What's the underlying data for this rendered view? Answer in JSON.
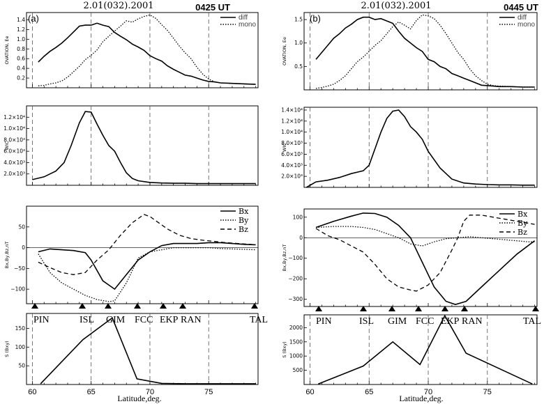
{
  "date_left": "2.01(032).2001",
  "date_right": "2.01(032).2001",
  "time_left": "0425 UT",
  "time_right": "0445 UT",
  "panel_left_label": "(a)",
  "panel_right_label": "(b)",
  "x_axis_label": "Latitude,deg.",
  "station_names": [
    "PIN",
    "ISL",
    "GIM",
    "FCC",
    "EKP",
    "RAN",
    "TAL"
  ],
  "chart_data": [
    {
      "id": "a-ovation",
      "type": "line",
      "ylabel": "OVATION, Ee",
      "xlim": [
        59.5,
        79.2
      ],
      "ylim": [
        0,
        1.55
      ],
      "yticks": [
        0.2,
        0.4,
        0.6,
        0.8,
        1.0,
        1.2,
        1.4
      ],
      "ytick_labels": [
        "0.2",
        "0.4",
        "0.6",
        "0.8",
        "1.0",
        "1.2",
        "1.4"
      ],
      "vlines": [
        60,
        65,
        70,
        75
      ],
      "legend": "top-right",
      "series": [
        {
          "name": "diff",
          "style": "solid",
          "x": [
            60.5,
            61,
            61.5,
            62,
            62.5,
            63,
            63.5,
            64,
            64.5,
            65,
            65.5,
            66,
            66.5,
            67,
            67.5,
            68,
            68.5,
            69,
            69.5,
            70,
            70.5,
            71,
            71.5,
            72,
            72.5,
            73,
            73.5,
            74,
            74.5,
            75,
            75.5,
            76,
            77,
            78,
            79
          ],
          "y": [
            0.53,
            0.65,
            0.75,
            0.83,
            0.92,
            1.03,
            1.15,
            1.27,
            1.29,
            1.29,
            1.33,
            1.29,
            1.26,
            1.14,
            1.06,
            0.99,
            0.9,
            0.84,
            0.77,
            0.66,
            0.6,
            0.55,
            0.45,
            0.38,
            0.32,
            0.26,
            0.24,
            0.2,
            0.16,
            0.13,
            0.12,
            0.1,
            0.09,
            0.08,
            0.07
          ]
        },
        {
          "name": "mono",
          "style": "dotted",
          "x": [
            60.5,
            61,
            61.5,
            62,
            62.5,
            63,
            63.5,
            64,
            64.5,
            65,
            65.5,
            66,
            66.5,
            67,
            67.5,
            68,
            68.5,
            69,
            69.5,
            70,
            70.5,
            71,
            71.5,
            72,
            72.5,
            73,
            73.5,
            74,
            74.5,
            75,
            75.5,
            76,
            77,
            78,
            79
          ],
          "y": [
            0.04,
            0.05,
            0.08,
            0.1,
            0.14,
            0.22,
            0.33,
            0.44,
            0.58,
            0.67,
            0.78,
            0.95,
            1.06,
            1.17,
            1.27,
            1.38,
            1.35,
            1.42,
            1.47,
            1.5,
            1.43,
            1.3,
            1.18,
            1.02,
            0.86,
            0.72,
            0.6,
            0.42,
            0.28,
            0.18,
            0.12,
            0.1,
            0.09,
            0.08,
            0.07
          ]
        }
      ]
    },
    {
      "id": "a-wic",
      "type": "line",
      "ylabel": "WIC",
      "xlim": [
        59.5,
        79.2
      ],
      "ylim": [
        0,
        14000
      ],
      "yticks": [
        2000,
        4000,
        6000,
        8000,
        10000,
        12000
      ],
      "ytick_labels": [
        "2.0×10³",
        "4.0×10³",
        "6.0×10³",
        "8.0×10³",
        "1.0×10⁴",
        "1.2×10⁴"
      ],
      "vlines": [
        60,
        65,
        70,
        75
      ],
      "series": [
        {
          "name": "",
          "style": "solid",
          "x": [
            60,
            61,
            62,
            62.7,
            63.3,
            64,
            64.5,
            65,
            65.5,
            66,
            66.5,
            67,
            67.5,
            68,
            68.5,
            69,
            70,
            71,
            72,
            73,
            74,
            75,
            76,
            77,
            78,
            79
          ],
          "y": [
            1000,
            1500,
            2500,
            4000,
            7000,
            11000,
            13000,
            12900,
            10800,
            8800,
            7000,
            6000,
            4000,
            2200,
            1200,
            800,
            500,
            400,
            350,
            350,
            300,
            300,
            300,
            300,
            300,
            300
          ]
        }
      ]
    },
    {
      "id": "a-b",
      "type": "line",
      "ylabel": "Bx,By,Bz,nT",
      "xlim": [
        59.5,
        79.2
      ],
      "ylim": [
        -135,
        100
      ],
      "yticks": [
        -100,
        -50,
        0,
        50
      ],
      "ytick_labels": [
        "−100",
        "−50",
        "0",
        "50"
      ],
      "hline": 0,
      "legend": "top-right",
      "series": [
        {
          "name": "Bx",
          "style": "solid",
          "x": [
            60.5,
            61.5,
            62.5,
            63.5,
            64.5,
            65,
            66,
            67,
            68,
            69,
            70,
            71,
            72,
            73,
            74,
            75,
            76,
            77,
            78,
            79
          ],
          "y": [
            -10,
            -3,
            -5,
            -7,
            -12,
            -30,
            -80,
            -100,
            -65,
            -30,
            -10,
            5,
            10,
            10,
            10,
            12,
            12,
            10,
            8,
            7
          ]
        },
        {
          "name": "By",
          "style": "dotted",
          "x": [
            60.5,
            61.5,
            62.5,
            63.5,
            64.5,
            65.5,
            66.5,
            67,
            68,
            69,
            70,
            71,
            72,
            73,
            74,
            75,
            76,
            77,
            78,
            79
          ],
          "y": [
            -15,
            -60,
            -85,
            -100,
            -115,
            -125,
            -130,
            -128,
            -85,
            -25,
            -10,
            -5,
            0,
            0,
            0,
            0,
            -2,
            -3,
            -4,
            -5
          ]
        },
        {
          "name": "Bz",
          "style": "dashed",
          "x": [
            60.5,
            61.5,
            62.5,
            63.5,
            64.5,
            65.5,
            66.5,
            67.5,
            68.5,
            69.5,
            70,
            70.5,
            71.5,
            72.5,
            73.5,
            74.5,
            75.5,
            76.5,
            77.5,
            78.5,
            79
          ],
          "y": [
            -35,
            -48,
            -60,
            -65,
            -60,
            -30,
            -5,
            30,
            60,
            80,
            75,
            65,
            45,
            30,
            22,
            18,
            15,
            12,
            10,
            8,
            7
          ]
        }
      ]
    },
    {
      "id": "a-s",
      "type": "line",
      "ylabel": "S (Bxy)",
      "xlim": [
        59.5,
        79.2
      ],
      "ylim": [
        0,
        190
      ],
      "yticks": [
        50,
        100,
        150
      ],
      "ytick_labels": [
        "50",
        "100",
        "150"
      ],
      "xticks": [
        60,
        65,
        70,
        75
      ],
      "xtick_labels": [
        "60",
        "65",
        "70",
        "75"
      ],
      "vlines": [
        60,
        65,
        70,
        75
      ],
      "series": [
        {
          "name": "",
          "style": "solid",
          "x": [
            60.7,
            64.3,
            66.8,
            68.9,
            71,
            73,
            79
          ],
          "y": [
            2,
            120,
            178,
            15,
            3,
            2,
            2
          ]
        }
      ]
    },
    {
      "id": "b-ovation",
      "type": "line",
      "ylabel": "OVATION, Ee",
      "xlim": [
        59.5,
        79.2
      ],
      "ylim": [
        0,
        1.65
      ],
      "yticks": [
        0.5,
        1.0,
        1.5
      ],
      "ytick_labels": [
        "0.5",
        "1.0",
        "1.5"
      ],
      "vlines": [
        60,
        65,
        70,
        75
      ],
      "legend": "top-right",
      "series": [
        {
          "name": "diff",
          "style": "solid",
          "x": [
            60.5,
            61,
            61.5,
            62,
            62.5,
            63,
            63.5,
            64,
            64.5,
            65,
            65.5,
            66,
            66.5,
            67,
            67.5,
            68,
            68.5,
            69,
            69.5,
            70,
            70.5,
            71,
            71.5,
            72,
            72.5,
            73,
            73.5,
            74,
            74.5,
            75,
            75.5,
            76,
            77,
            78,
            79
          ],
          "y": [
            0.65,
            0.8,
            0.95,
            1.1,
            1.2,
            1.32,
            1.4,
            1.5,
            1.55,
            1.55,
            1.5,
            1.52,
            1.47,
            1.42,
            1.25,
            1.1,
            1.0,
            0.9,
            0.82,
            0.65,
            0.6,
            0.5,
            0.45,
            0.35,
            0.3,
            0.25,
            0.2,
            0.15,
            0.1,
            0.09,
            0.08,
            0.07,
            0.07,
            0.06,
            0.06
          ]
        },
        {
          "name": "mono",
          "style": "dotted",
          "x": [
            60.5,
            61,
            61.5,
            62,
            62.5,
            63,
            63.5,
            64,
            64.5,
            65,
            65.5,
            66,
            66.5,
            67,
            67.5,
            68,
            68.5,
            69,
            69.5,
            70,
            70.5,
            71,
            71.5,
            72,
            72.5,
            73,
            73.5,
            74,
            74.5,
            75,
            75.5,
            76,
            77,
            78,
            79
          ],
          "y": [
            0.03,
            0.05,
            0.08,
            0.12,
            0.2,
            0.3,
            0.45,
            0.6,
            0.7,
            0.82,
            0.95,
            1.05,
            1.2,
            1.35,
            1.45,
            1.38,
            1.3,
            1.48,
            1.6,
            1.58,
            1.52,
            1.38,
            1.2,
            1.0,
            0.8,
            0.65,
            0.45,
            0.3,
            0.2,
            0.12,
            0.09,
            0.08,
            0.07,
            0.06,
            0.06
          ]
        }
      ]
    },
    {
      "id": "b-wic",
      "type": "line",
      "ylabel": "WIC",
      "xlim": [
        59.5,
        79.2
      ],
      "ylim": [
        0,
        14500
      ],
      "yticks": [
        2000,
        4000,
        6000,
        8000,
        10000,
        12000,
        14000
      ],
      "ytick_labels": [
        "2.0×10³",
        "4.0×10³",
        "6.0×10³",
        "8.0×10³",
        "1.0×10⁴",
        "1.2×10⁴",
        "1.4×10⁴"
      ],
      "vlines": [
        60,
        65,
        70,
        75
      ],
      "series": [
        {
          "name": "",
          "style": "solid",
          "x": [
            59.7,
            60.5,
            61.5,
            62.5,
            63.5,
            64.5,
            65,
            65.5,
            66,
            66.5,
            67,
            67.5,
            68,
            68.5,
            69,
            69.5,
            70,
            71,
            72,
            73,
            74,
            75,
            76,
            77,
            78,
            79
          ],
          "y": [
            0,
            1000,
            1300,
            1800,
            2500,
            3000,
            4000,
            7000,
            10000,
            12500,
            13800,
            14000,
            12800,
            11000,
            10000,
            8700,
            6500,
            3500,
            1500,
            800,
            600,
            500,
            450,
            450,
            400,
            400
          ]
        }
      ]
    },
    {
      "id": "b-b",
      "type": "line",
      "ylabel": "Bx,By,Bz,nT",
      "xlim": [
        59.5,
        79.2
      ],
      "ylim": [
        -335,
        140
      ],
      "yticks": [
        -300,
        -200,
        -100,
        0,
        100
      ],
      "ytick_labels": [
        "−300",
        "−200",
        "−100",
        "0",
        "100"
      ],
      "hline": 0,
      "legend": "top-right",
      "series": [
        {
          "name": "Bx",
          "style": "solid",
          "x": [
            60.5,
            62,
            63.5,
            64.5,
            65.5,
            66.5,
            67.5,
            68.5,
            69.5,
            70.5,
            71.5,
            72.3,
            73.2,
            74.5,
            76,
            77.5,
            79
          ],
          "y": [
            50,
            80,
            105,
            120,
            118,
            100,
            60,
            0,
            -120,
            -240,
            -310,
            -325,
            -310,
            -240,
            -160,
            -80,
            -15
          ]
        },
        {
          "name": "By",
          "style": "dotted",
          "x": [
            60.5,
            62,
            63.5,
            64.5,
            65.5,
            66.5,
            67.5,
            68.5,
            69.5,
            70.5,
            71.5,
            72.5,
            73.5,
            74.5,
            75.5,
            76.5,
            77.5,
            78.5,
            79
          ],
          "y": [
            50,
            55,
            55,
            50,
            40,
            20,
            0,
            -30,
            -40,
            -20,
            -5,
            0,
            5,
            0,
            -5,
            -10,
            -15,
            -20,
            -20
          ]
        },
        {
          "name": "Bz",
          "style": "dashed",
          "x": [
            60.5,
            61.5,
            62.5,
            63.5,
            64.5,
            65.5,
            66.5,
            67.5,
            68.5,
            69,
            70,
            71,
            72,
            72.5,
            73,
            73.5,
            74.5,
            75.5,
            76.5,
            77.5,
            78.5,
            79
          ],
          "y": [
            45,
            10,
            -10,
            -40,
            -70,
            -130,
            -200,
            -240,
            -255,
            -260,
            -230,
            -170,
            -60,
            0,
            80,
            110,
            110,
            100,
            90,
            80,
            70,
            65
          ]
        }
      ]
    },
    {
      "id": "b-s",
      "type": "line",
      "ylabel": "S (Bxy)",
      "xlim": [
        59.5,
        79.2
      ],
      "ylim": [
        0,
        2450
      ],
      "yticks": [
        500,
        1000,
        1500,
        2000
      ],
      "ytick_labels": [
        "500",
        "1000",
        "1500",
        "2000"
      ],
      "xticks": [
        60,
        65,
        70,
        75
      ],
      "xtick_labels": [
        "60",
        "65",
        "70",
        "75"
      ],
      "vlines": [
        60,
        65,
        70,
        75
      ],
      "series": [
        {
          "name": "",
          "style": "solid",
          "x": [
            60.7,
            64.5,
            67,
            69.3,
            71.4,
            73.2,
            78.8
          ],
          "y": [
            20,
            650,
            1500,
            700,
            2420,
            1100,
            20
          ]
        }
      ]
    }
  ]
}
